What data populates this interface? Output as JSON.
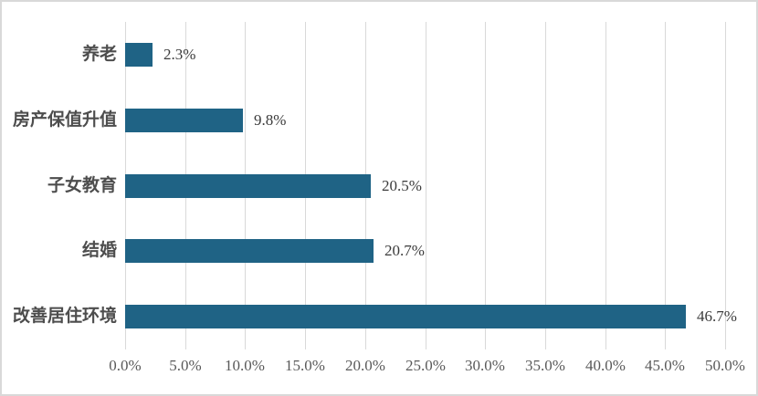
{
  "chart_data": {
    "type": "bar",
    "orientation": "horizontal",
    "title": "",
    "xlabel": "",
    "ylabel": "",
    "categories": [
      "养老",
      "房产保值升值",
      "子女教育",
      "结婚",
      "改善居住环境"
    ],
    "values": [
      2.3,
      9.8,
      20.5,
      20.7,
      46.7
    ],
    "data_labels": [
      "2.3%",
      "9.8%",
      "20.5%",
      "20.7%",
      "46.7%"
    ],
    "x_tick_labels": [
      "0.0%",
      "5.0%",
      "10.0%",
      "15.0%",
      "20.0%",
      "25.0%",
      "30.0%",
      "35.0%",
      "40.0%",
      "45.0%",
      "50.0%"
    ],
    "x_tick_values": [
      0,
      5,
      10,
      15,
      20,
      25,
      30,
      35,
      40,
      45,
      50
    ],
    "xlim": [
      0,
      50
    ],
    "grid": "vertical-gridlines",
    "legend": "none",
    "colors": {
      "bar": "#1f6385",
      "gridline": "#d9d9d9",
      "tick_label": "#595959",
      "category_label": "#4d4d4d",
      "data_label": "#3b3b3b",
      "border": "#d9d9d9",
      "background": "#ffffff"
    }
  }
}
